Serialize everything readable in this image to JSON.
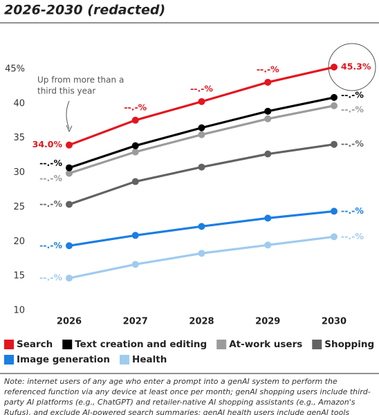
{
  "chart_data": {
    "type": "line",
    "title": "2026-2030 (redacted)",
    "categories": [
      "2026",
      "2027",
      "2028",
      "2029",
      "2030"
    ],
    "ylim": [
      10,
      45
    ],
    "yticks": [
      10,
      15,
      20,
      25,
      30,
      35,
      40,
      {
        "value": 45,
        "label": "45%"
      }
    ],
    "grid": false,
    "series": [
      {
        "name": "Search",
        "color": "#e3151d",
        "values": [
          34.0,
          37.6,
          40.3,
          43.1,
          45.3
        ],
        "value_labels": [
          "34.0%",
          "--.-%",
          "--.-%",
          "--.-%",
          "45.3%"
        ]
      },
      {
        "name": "Text creation and editing",
        "color": "#000000",
        "values": [
          30.7,
          33.9,
          36.5,
          38.9,
          40.9
        ],
        "value_labels": [
          "--.-%",
          null,
          null,
          null,
          "--.-%"
        ]
      },
      {
        "name": "At-work users",
        "color": "#9b9b9b",
        "values": [
          29.9,
          33.0,
          35.5,
          37.8,
          39.7
        ],
        "value_labels": [
          "--.-%",
          null,
          null,
          null,
          "--.-%"
        ]
      },
      {
        "name": "Shopping",
        "color": "#626262",
        "values": [
          25.4,
          28.7,
          30.8,
          32.7,
          34.1
        ],
        "value_labels": [
          "--.-%",
          null,
          null,
          null,
          "--.-%"
        ]
      },
      {
        "name": "Image generation",
        "color": "#1a7ee2",
        "values": [
          19.4,
          20.9,
          22.2,
          23.4,
          24.4
        ],
        "value_labels": [
          "--.-%",
          null,
          null,
          null,
          "--.-%"
        ]
      },
      {
        "name": "Health",
        "color": "#9fcbef",
        "values": [
          14.7,
          16.7,
          18.3,
          19.5,
          20.7
        ],
        "value_labels": [
          "--.-%",
          null,
          null,
          null,
          "--.-%"
        ]
      }
    ],
    "annotation": [
      "Up from more than a",
      "third this year"
    ],
    "note": "Note: internet users of any age who enter a prompt into a genAI system to perform the referenced function via any device at least once per month; genAI shopping users include third-party AI platforms (e.g., ChatGPT) and retailer-native AI shopping assistants (e.g., Amazon's Rufus), and exclude AI-powered search summaries; genAI health users include genAI tools"
  }
}
